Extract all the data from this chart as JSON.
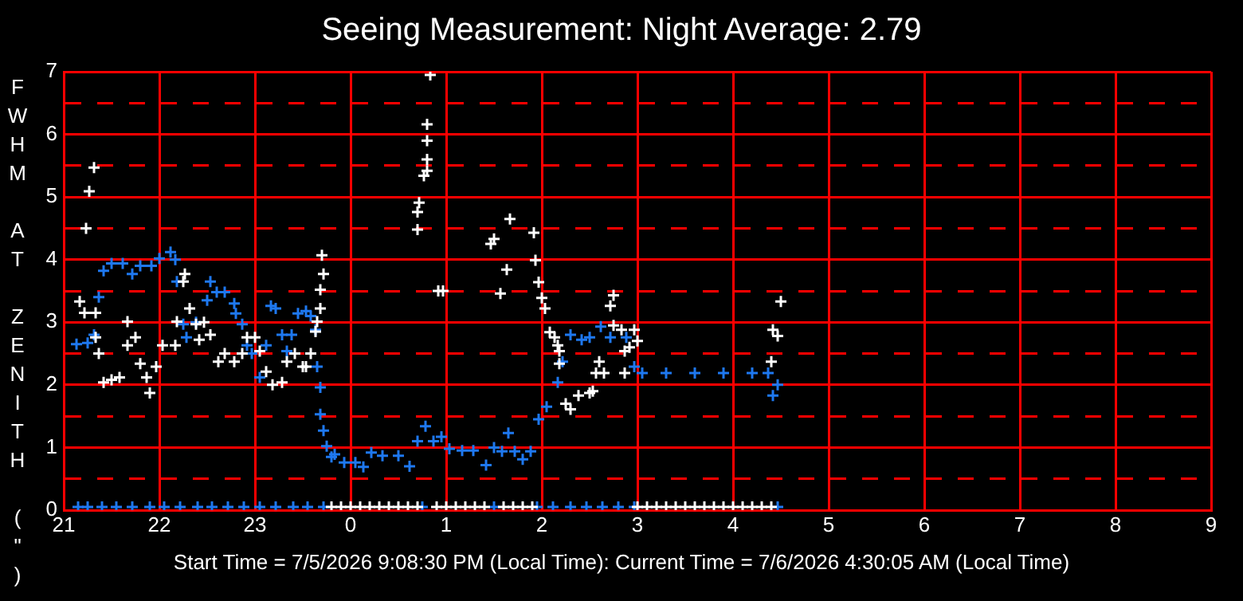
{
  "chart_data": {
    "type": "scatter",
    "title": "Seeing Measurement: Night Average: 2.79",
    "ylabel": "FWHM AT ZENITH (\")",
    "annotations": [
      "Start Time = 7/5/2026 9:08:30 PM (Local Time): Current Time = 7/6/2026 4:30:05 AM (Local Time)"
    ],
    "xlim": [
      "2026-07-05T21:00",
      "2026-07-06T09:00"
    ],
    "xticks": [
      {
        "value": "2026-07-05T21:00",
        "label": "21"
      },
      {
        "value": "2026-07-05T22:00",
        "label": "22"
      },
      {
        "value": "2026-07-05T23:00",
        "label": "23"
      },
      {
        "value": "2026-07-06T00:00",
        "label": "0"
      },
      {
        "value": "2026-07-06T01:00",
        "label": "1"
      },
      {
        "value": "2026-07-06T02:00",
        "label": "2"
      },
      {
        "value": "2026-07-06T03:00",
        "label": "3"
      },
      {
        "value": "2026-07-06T04:00",
        "label": "4"
      },
      {
        "value": "2026-07-06T05:00",
        "label": "5"
      },
      {
        "value": "2026-07-06T06:00",
        "label": "6"
      },
      {
        "value": "2026-07-06T07:00",
        "label": "7"
      },
      {
        "value": "2026-07-06T08:00",
        "label": "8"
      },
      {
        "value": "2026-07-06T09:00",
        "label": "9"
      }
    ],
    "ylim": [
      0,
      7
    ],
    "yticks": [
      0,
      {
        "value": 0.5,
        "label": null
      },
      1,
      {
        "value": 1.5,
        "label": null
      },
      2,
      {
        "value": 2.5,
        "label": null
      },
      3,
      {
        "value": 3.5,
        "label": null
      },
      4,
      {
        "value": 4.5,
        "label": null
      },
      5,
      {
        "value": 5.5,
        "label": null
      },
      6,
      {
        "value": 6.5,
        "label": null
      },
      7
    ],
    "grid": true,
    "marker": "cross",
    "series": [
      {
        "color": "#ffffff",
        "x": [
          "2026-07-05T21:19",
          "2026-07-05T21:16",
          "2026-07-05T21:14",
          "2026-07-05T21:10",
          "2026-07-05T21:13",
          "2026-07-05T21:20",
          "2026-07-05T21:20",
          "2026-07-05T21:22",
          "2026-07-05T21:25",
          "2026-07-05T21:30",
          "2026-07-05T21:35",
          "2026-07-05T21:40",
          "2026-07-05T21:45",
          "2026-07-05T21:40",
          "2026-07-05T21:48",
          "2026-07-05T21:52",
          "2026-07-05T21:54",
          "2026-07-05T21:58",
          "2026-07-05T22:02",
          "2026-07-05T22:10",
          "2026-07-05T22:16",
          "2026-07-05T22:15",
          "2026-07-05T22:11",
          "2026-07-05T22:19",
          "2026-07-05T22:23",
          "2026-07-05T22:25",
          "2026-07-05T22:28",
          "2026-07-05T22:32",
          "2026-07-05T22:37",
          "2026-07-05T22:41",
          "2026-07-05T22:47",
          "2026-07-05T22:52",
          "2026-07-05T22:55",
          "2026-07-05T23:00",
          "2026-07-05T23:03",
          "2026-07-05T23:07",
          "2026-07-05T23:11",
          "2026-07-05T23:17",
          "2026-07-05T23:20",
          "2026-07-05T23:25",
          "2026-07-05T23:30",
          "2026-07-05T23:35",
          "2026-07-05T23:38",
          "2026-07-05T23:41",
          "2026-07-05T23:41",
          "2026-07-05T23:43",
          "2026-07-05T23:42",
          "2026-07-05T23:39",
          "2026-07-05T23:32",
          "2026-07-06T00:50",
          "2026-07-06T00:48",
          "2026-07-06T00:48",
          "2026-07-06T00:48",
          "2026-07-06T00:48",
          "2026-07-06T00:46",
          "2026-07-06T00:43",
          "2026-07-06T00:42",
          "2026-07-06T00:42",
          "2026-07-06T00:55",
          "2026-07-06T00:58",
          "2026-07-06T01:40",
          "2026-07-06T01:30",
          "2026-07-06T01:28",
          "2026-07-06T01:38",
          "2026-07-06T01:34",
          "2026-07-06T01:55",
          "2026-07-06T01:56",
          "2026-07-06T01:58",
          "2026-07-06T02:00",
          "2026-07-06T02:02",
          "2026-07-06T02:05",
          "2026-07-06T02:08",
          "2026-07-06T02:11",
          "2026-07-06T02:10",
          "2026-07-06T02:11",
          "2026-07-06T02:15",
          "2026-07-06T02:18",
          "2026-07-06T02:23",
          "2026-07-06T02:30",
          "2026-07-06T02:32",
          "2026-07-06T02:43",
          "2026-07-06T02:45",
          "2026-07-06T02:36",
          "2026-07-06T02:34",
          "2026-07-06T02:39",
          "2026-07-06T02:45",
          "2026-07-06T02:50",
          "2026-07-06T02:52",
          "2026-07-06T02:52",
          "2026-07-06T02:58",
          "2026-07-06T03:00",
          "2026-07-06T02:55",
          "2026-07-06T04:25",
          "2026-07-06T04:28",
          "2026-07-06T04:24",
          "2026-07-06T04:30",
          "2026-07-05T23:48",
          "2026-07-05T23:54",
          "2026-07-06T00:00",
          "2026-07-06T00:06",
          "2026-07-06T00:12",
          "2026-07-06T00:18",
          "2026-07-06T00:24",
          "2026-07-06T00:30",
          "2026-07-06T00:36",
          "2026-07-06T00:42",
          "2026-07-06T00:54",
          "2026-07-06T01:00",
          "2026-07-06T01:06",
          "2026-07-06T01:12",
          "2026-07-06T01:18",
          "2026-07-06T01:24",
          "2026-07-06T01:36",
          "2026-07-06T01:42",
          "2026-07-06T01:48",
          "2026-07-06T01:54",
          "2026-07-06T03:00",
          "2026-07-06T03:06",
          "2026-07-06T03:12",
          "2026-07-06T03:18",
          "2026-07-06T03:24",
          "2026-07-06T03:30",
          "2026-07-06T03:36",
          "2026-07-06T03:42",
          "2026-07-06T03:48",
          "2026-07-06T03:54",
          "2026-07-06T04:00",
          "2026-07-06T04:06",
          "2026-07-06T04:12",
          "2026-07-06T04:18",
          "2026-07-06T04:24"
        ],
        "values": [
          5.47,
          5.09,
          4.5,
          3.33,
          3.15,
          3.15,
          2.76,
          2.5,
          2.04,
          2.08,
          2.12,
          3.01,
          2.76,
          2.63,
          2.34,
          2.12,
          1.87,
          2.29,
          2.63,
          2.63,
          3.77,
          3.65,
          3.01,
          3.22,
          2.97,
          2.72,
          3.0,
          2.8,
          2.37,
          2.5,
          2.37,
          2.5,
          2.76,
          2.76,
          2.54,
          2.21,
          2.0,
          2.04,
          2.37,
          2.5,
          2.29,
          2.5,
          2.85,
          3.22,
          3.52,
          3.77,
          4.07,
          3.01,
          2.29,
          6.95,
          6.16,
          5.9,
          5.6,
          5.42,
          5.34,
          4.91,
          4.76,
          4.48,
          3.5,
          3.5,
          4.65,
          4.33,
          4.25,
          3.84,
          3.46,
          4.43,
          3.99,
          3.64,
          3.39,
          3.22,
          2.84,
          2.76,
          2.54,
          2.63,
          2.34,
          1.7,
          1.61,
          1.83,
          1.87,
          1.9,
          3.26,
          3.43,
          2.37,
          2.19,
          2.19,
          2.95,
          2.88,
          2.54,
          2.19,
          2.88,
          2.7,
          2.6,
          2.88,
          2.78,
          2.37,
          3.33,
          0.05,
          0.05,
          0.05,
          0.05,
          0.05,
          0.05,
          0.05,
          0.05,
          0.05,
          0.05,
          0.05,
          0.05,
          0.05,
          0.05,
          0.05,
          0.05,
          0.05,
          0.05,
          0.05,
          0.05,
          0.05,
          0.05,
          0.05,
          0.05,
          0.05,
          0.05,
          0.05,
          0.05,
          0.05,
          0.05,
          0.05,
          0.05,
          0.05,
          0.05,
          0.05
        ]
      },
      {
        "color": "#1e78f0",
        "x": [
          "2026-07-05T21:08",
          "2026-07-05T21:15",
          "2026-07-05T21:19",
          "2026-07-05T21:22",
          "2026-07-05T21:25",
          "2026-07-05T21:30",
          "2026-07-05T21:37",
          "2026-07-05T21:43",
          "2026-07-05T21:48",
          "2026-07-05T21:55",
          "2026-07-05T22:00",
          "2026-07-05T22:07",
          "2026-07-05T22:10",
          "2026-07-05T22:11",
          "2026-07-05T22:15",
          "2026-07-05T22:17",
          "2026-07-05T22:23",
          "2026-07-05T22:30",
          "2026-07-05T22:32",
          "2026-07-05T22:36",
          "2026-07-05T22:41",
          "2026-07-05T22:47",
          "2026-07-05T22:48",
          "2026-07-05T22:52",
          "2026-07-05T22:55",
          "2026-07-05T22:58",
          "2026-07-05T23:03",
          "2026-07-05T23:07",
          "2026-07-05T23:10",
          "2026-07-05T23:13",
          "2026-07-05T23:17",
          "2026-07-05T23:20",
          "2026-07-05T23:23",
          "2026-07-05T23:27",
          "2026-07-05T23:32",
          "2026-07-05T23:35",
          "2026-07-05T23:38",
          "2026-07-05T23:39",
          "2026-07-05T23:41",
          "2026-07-05T23:41",
          "2026-07-05T23:43",
          "2026-07-05T23:45",
          "2026-07-05T23:48",
          "2026-07-05T23:50",
          "2026-07-05T23:56",
          "2026-07-06T00:03",
          "2026-07-06T00:08",
          "2026-07-06T00:13",
          "2026-07-06T00:20",
          "2026-07-06T00:30",
          "2026-07-06T00:37",
          "2026-07-06T00:42",
          "2026-07-06T00:47",
          "2026-07-06T00:52",
          "2026-07-06T00:57",
          "2026-07-06T01:02",
          "2026-07-06T01:10",
          "2026-07-06T01:17",
          "2026-07-06T01:25",
          "2026-07-06T01:30",
          "2026-07-06T01:35",
          "2026-07-06T01:39",
          "2026-07-06T01:43",
          "2026-07-06T01:48",
          "2026-07-06T01:53",
          "2026-07-06T01:58",
          "2026-07-06T02:03",
          "2026-07-06T02:10",
          "2026-07-06T02:13",
          "2026-07-06T02:18",
          "2026-07-06T02:25",
          "2026-07-06T02:30",
          "2026-07-06T02:37",
          "2026-07-06T02:43",
          "2026-07-06T02:53",
          "2026-07-06T02:58",
          "2026-07-06T03:03",
          "2026-07-06T03:18",
          "2026-07-06T03:36",
          "2026-07-06T03:54",
          "2026-07-06T04:12",
          "2026-07-06T04:22",
          "2026-07-06T04:28",
          "2026-07-06T04:25",
          "2026-07-05T21:09",
          "2026-07-05T21:15",
          "2026-07-05T21:24",
          "2026-07-05T21:33",
          "2026-07-05T21:43",
          "2026-07-05T21:54",
          "2026-07-05T22:03",
          "2026-07-05T22:13",
          "2026-07-05T22:24",
          "2026-07-05T22:33",
          "2026-07-05T22:43",
          "2026-07-05T22:53",
          "2026-07-05T23:03",
          "2026-07-05T23:13",
          "2026-07-05T23:24",
          "2026-07-05T23:33",
          "2026-07-05T23:43",
          "2026-07-06T00:45",
          "2026-07-06T01:30",
          "2026-07-06T01:57",
          "2026-07-06T02:07",
          "2026-07-06T02:18",
          "2026-07-06T02:28",
          "2026-07-06T02:38",
          "2026-07-06T02:48",
          "2026-07-06T02:58",
          "2026-07-06T04:28"
        ],
        "values": [
          2.65,
          2.67,
          2.8,
          3.4,
          3.82,
          3.94,
          3.94,
          3.77,
          3.9,
          3.9,
          4.02,
          4.12,
          4.0,
          3.65,
          2.97,
          2.76,
          3.0,
          3.35,
          3.65,
          3.48,
          3.48,
          3.3,
          3.14,
          2.97,
          2.63,
          2.5,
          2.12,
          2.63,
          3.26,
          3.22,
          2.8,
          2.54,
          2.8,
          3.14,
          3.18,
          3.1,
          2.88,
          2.29,
          1.96,
          1.53,
          1.27,
          1.02,
          0.85,
          0.89,
          0.76,
          0.76,
          0.69,
          0.92,
          0.87,
          0.87,
          0.7,
          1.1,
          1.34,
          1.1,
          1.17,
          0.98,
          0.95,
          0.95,
          0.72,
          1.0,
          0.94,
          1.23,
          0.94,
          0.81,
          0.94,
          1.45,
          1.65,
          2.04,
          2.37,
          2.8,
          2.72,
          2.76,
          2.93,
          2.76,
          2.76,
          2.29,
          2.19,
          2.19,
          2.19,
          2.19,
          2.19,
          2.19,
          2.0,
          1.83,
          0.05,
          0.05,
          0.05,
          0.05,
          0.05,
          0.05,
          0.05,
          0.05,
          0.05,
          0.05,
          0.05,
          0.05,
          0.05,
          0.05,
          0.05,
          0.05,
          0.05,
          0.05,
          0.05,
          0.05,
          0.05,
          0.05,
          0.05,
          0.05,
          0.05,
          0.05,
          0.05
        ]
      }
    ]
  }
}
